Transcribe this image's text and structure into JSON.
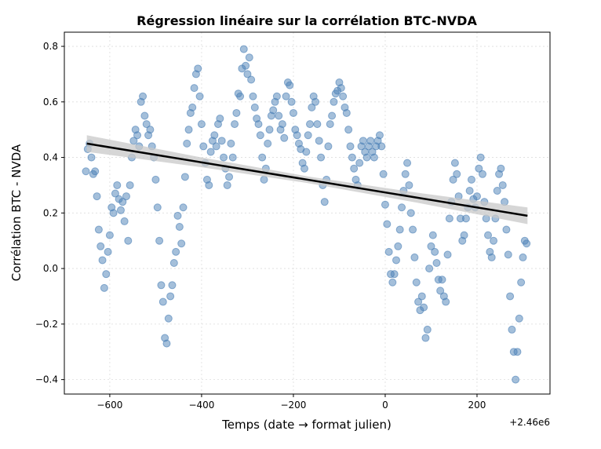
{
  "chart_data": {
    "type": "scatter",
    "title": "Régression linéaire sur la corrélation BTC-NVDA",
    "xlabel": "Temps (date → format julien)",
    "ylabel": "Corrélation BTC - NVDA",
    "x_offset_label": "+2.46e6",
    "color": "#4a7fb5",
    "xlim": [
      -699,
      359
    ],
    "ylim": [
      -0.452,
      0.851
    ],
    "xticks": [
      {
        "value": -600,
        "label": "−600"
      },
      {
        "value": -400,
        "label": "−400"
      },
      {
        "value": -200,
        "label": "−200"
      },
      0,
      200
    ],
    "yticks": [
      {
        "value": -0.4,
        "label": "−0.4"
      },
      {
        "value": -0.2,
        "label": "−0.2"
      },
      {
        "value": 0.0,
        "label": "0.0"
      },
      0.2,
      0.4,
      0.6,
      0.8
    ],
    "grid": true,
    "x": [
      -652,
      -648,
      -644,
      -640,
      -636,
      -632,
      -628,
      -624,
      -620,
      -616,
      -612,
      -608,
      -604,
      -600,
      -596,
      -592,
      -588,
      -584,
      -580,
      -576,
      -572,
      -568,
      -564,
      -560,
      -556,
      -552,
      -548,
      -544,
      -540,
      -536,
      -532,
      -528,
      -524,
      -520,
      -516,
      -512,
      -508,
      -504,
      -500,
      -496,
      -492,
      -488,
      -484,
      -480,
      -476,
      -472,
      -468,
      -464,
      -460,
      -456,
      -452,
      -448,
      -444,
      -440,
      -436,
      -432,
      -428,
      -424,
      -420,
      -416,
      -412,
      -408,
      -404,
      -400,
      -396,
      -392,
      -388,
      -384,
      -380,
      -376,
      -372,
      -368,
      -364,
      -360,
      -356,
      -352,
      -348,
      -344,
      -340,
      -336,
      -332,
      -328,
      -324,
      -320,
      -316,
      -312,
      -308,
      -304,
      -300,
      -296,
      -292,
      -288,
      -284,
      -280,
      -276,
      -272,
      -268,
      -264,
      -260,
      -256,
      -252,
      -248,
      -244,
      -240,
      -236,
      -232,
      -228,
      -224,
      -220,
      -216,
      -212,
      -208,
      -204,
      -200,
      -196,
      -192,
      -188,
      -184,
      -180,
      -176,
      -172,
      -168,
      -164,
      -160,
      -156,
      -152,
      -148,
      -144,
      -140,
      -136,
      -132,
      -128,
      -124,
      -120,
      -116,
      -112,
      -108,
      -104,
      -100,
      -96,
      -92,
      -88,
      -84,
      -80,
      -76,
      -72,
      -68,
      -64,
      -60,
      -56,
      -52,
      -48,
      -44,
      -40,
      -36,
      -32,
      -28,
      -24,
      -20,
      -16,
      -12,
      -8,
      -4,
      0,
      4,
      8,
      12,
      16,
      20,
      24,
      28,
      32,
      36,
      40,
      44,
      48,
      52,
      56,
      60,
      64,
      68,
      72,
      76,
      80,
      84,
      88,
      92,
      96,
      100,
      104,
      108,
      112,
      116,
      120,
      124,
      128,
      132,
      136,
      140,
      144,
      148,
      152,
      156,
      160,
      164,
      168,
      172,
      176,
      180,
      184,
      188,
      192,
      196,
      200,
      204,
      208,
      212,
      216,
      220,
      224,
      228,
      232,
      236,
      240,
      244,
      248,
      252,
      256,
      260,
      264,
      268,
      272,
      276,
      280,
      284,
      288,
      292,
      296,
      300,
      304,
      308
    ],
    "y": [
      0.35,
      0.43,
      0.45,
      0.4,
      0.34,
      0.35,
      0.26,
      0.14,
      0.08,
      0.03,
      -0.07,
      -0.02,
      0.06,
      0.12,
      0.22,
      0.2,
      0.27,
      0.3,
      0.25,
      0.21,
      0.24,
      0.17,
      0.26,
      0.1,
      0.3,
      0.4,
      0.46,
      0.5,
      0.48,
      0.44,
      0.6,
      0.62,
      0.55,
      0.52,
      0.48,
      0.5,
      0.44,
      0.4,
      0.32,
      0.22,
      0.1,
      -0.06,
      -0.12,
      -0.25,
      -0.27,
      -0.18,
      -0.1,
      -0.06,
      0.02,
      0.06,
      0.19,
      0.15,
      0.09,
      0.22,
      0.33,
      0.45,
      0.5,
      0.56,
      0.58,
      0.65,
      0.7,
      0.72,
      0.62,
      0.52,
      0.44,
      0.38,
      0.32,
      0.3,
      0.42,
      0.46,
      0.48,
      0.44,
      0.52,
      0.54,
      0.46,
      0.4,
      0.36,
      0.3,
      0.33,
      0.45,
      0.4,
      0.52,
      0.56,
      0.63,
      0.62,
      0.72,
      0.79,
      0.73,
      0.7,
      0.76,
      0.68,
      0.62,
      0.58,
      0.54,
      0.52,
      0.48,
      0.4,
      0.32,
      0.36,
      0.45,
      0.5,
      0.55,
      0.57,
      0.6,
      0.62,
      0.55,
      0.5,
      0.52,
      0.47,
      0.62,
      0.67,
      0.66,
      0.6,
      0.56,
      0.5,
      0.48,
      0.45,
      0.43,
      0.38,
      0.36,
      0.42,
      0.48,
      0.52,
      0.58,
      0.62,
      0.6,
      0.52,
      0.46,
      0.4,
      0.3,
      0.24,
      0.32,
      0.44,
      0.52,
      0.55,
      0.6,
      0.63,
      0.64,
      0.67,
      0.65,
      0.62,
      0.58,
      0.56,
      0.5,
      0.44,
      0.4,
      0.36,
      0.32,
      0.3,
      0.38,
      0.44,
      0.46,
      0.42,
      0.4,
      0.44,
      0.46,
      0.42,
      0.4,
      0.44,
      0.46,
      0.48,
      0.44,
      0.34,
      0.23,
      0.16,
      0.06,
      -0.02,
      -0.05,
      -0.02,
      0.03,
      0.08,
      0.14,
      0.22,
      0.28,
      0.34,
      0.38,
      0.3,
      0.2,
      0.14,
      0.04,
      -0.05,
      -0.12,
      -0.15,
      -0.1,
      -0.14,
      -0.25,
      -0.22,
      0.0,
      0.08,
      0.12,
      0.06,
      0.02,
      -0.04,
      -0.08,
      -0.04,
      -0.1,
      -0.12,
      0.05,
      0.18,
      0.24,
      0.32,
      0.38,
      0.34,
      0.26,
      0.18,
      0.1,
      0.12,
      0.18,
      0.22,
      0.28,
      0.32,
      0.25,
      0.22,
      0.26,
      0.36,
      0.4,
      0.34,
      0.24,
      0.18,
      0.12,
      0.06,
      0.04,
      0.1,
      0.18,
      0.28,
      0.34,
      0.36,
      0.3,
      0.24,
      0.14,
      0.05,
      -0.1,
      -0.22,
      -0.3,
      -0.4,
      -0.3,
      -0.18,
      -0.05,
      0.04,
      0.1,
      0.09
    ],
    "regression": {
      "x": [
        -650,
        310
      ],
      "y": [
        0.45,
        0.19
      ],
      "color": "#000000"
    },
    "ci": {
      "x": [
        -650,
        -410,
        -170,
        70,
        310
      ],
      "upper": [
        0.48,
        0.403,
        0.332,
        0.273,
        0.22
      ],
      "lower": [
        0.42,
        0.367,
        0.308,
        0.237,
        0.16
      ],
      "color": "#c8c8c8"
    }
  }
}
